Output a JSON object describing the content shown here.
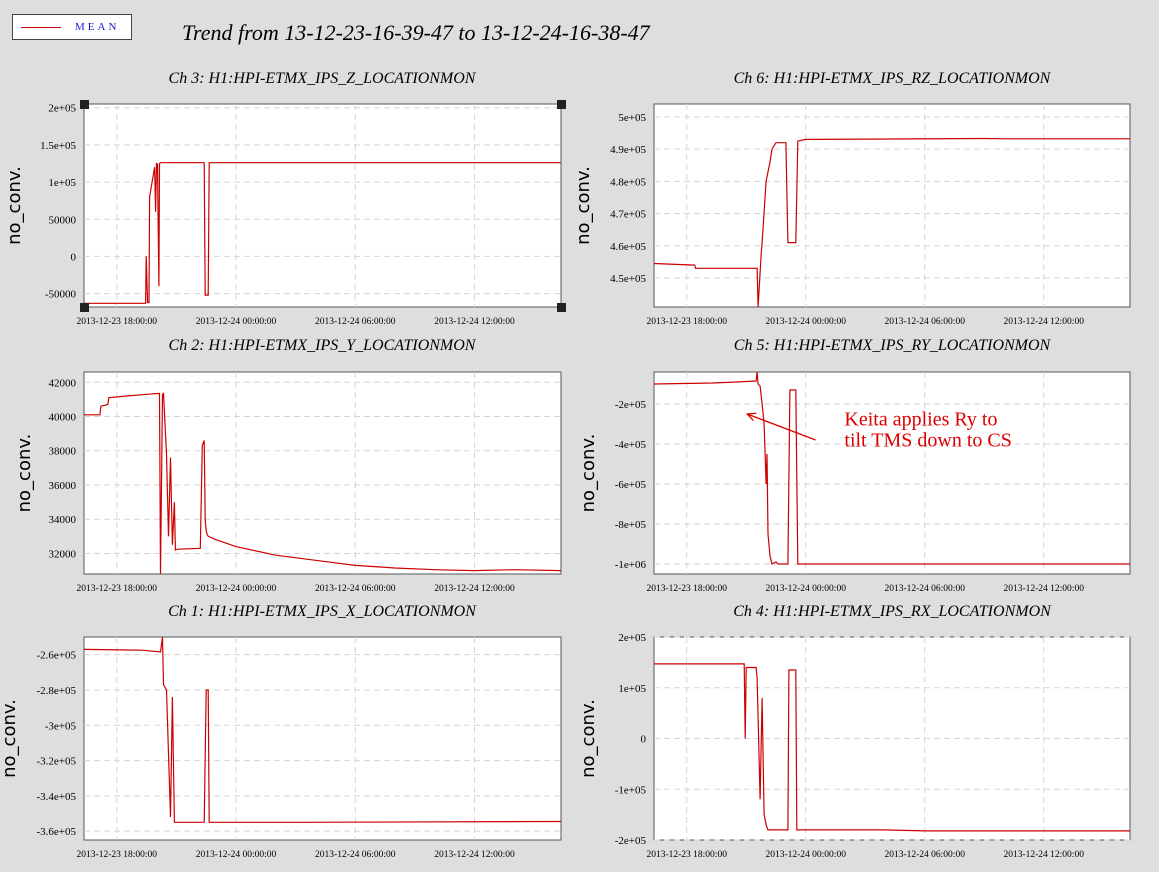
{
  "legend": {
    "label": "MEAN",
    "color": "#cc0000"
  },
  "title": "Trend from 13-12-23-16-39-47 to 13-12-24-16-38-47",
  "colors": {
    "trace": "#cc0000",
    "grid": "#d6d6d6",
    "page": "#dedede"
  },
  "chart_data": [
    {
      "id": "ch3",
      "type": "line",
      "title": "Ch 3: H1:HPI-ETMX_IPS_Z_LOCATIONMON",
      "ylabel": "no_conv.",
      "xlim": [
        -1.65,
        22.35
      ],
      "ylim": [
        -68000,
        205000
      ],
      "xticks": [
        0,
        6,
        12,
        18
      ],
      "xtick_labels": [
        "2013-12-23 18:00:00",
        "2013-12-24 00:00:00",
        "2013-12-24 06:00:00",
        "2013-12-24 12:00:00"
      ],
      "yticks": [
        -50000,
        0,
        50000,
        100000,
        150000,
        200000
      ],
      "ytick_labels": [
        "-50000",
        "0",
        "50000",
        "1e+05",
        "1.5e+05",
        "2e+05"
      ],
      "selected": true,
      "series": [
        {
          "x": [
            -1.65,
            1.45,
            1.48,
            1.55,
            1.62,
            1.65,
            1.9,
            1.95,
            2.0,
            2.05,
            2.12,
            2.15,
            2.2,
            2.25,
            4.4,
            4.45,
            4.6,
            4.65,
            22.35
          ],
          "y": [
            -63000,
            -63000,
            0,
            -62000,
            -62000,
            80000,
            120000,
            60000,
            125000,
            124000,
            -40000,
            125000,
            126000,
            126000,
            126000,
            -52000,
            -52000,
            126000,
            126000
          ]
        }
      ]
    },
    {
      "id": "ch6",
      "type": "line",
      "title": "Ch 6: H1:HPI-ETMX_IPS_RZ_LOCATIONMON",
      "ylabel": "no_conv.",
      "xlim": [
        -1.65,
        22.35
      ],
      "ylim": [
        441000,
        504000
      ],
      "xticks": [
        0,
        6,
        12,
        18
      ],
      "xtick_labels": [
        "2013-12-23 18:00:00",
        "2013-12-24 00:00:00",
        "2013-12-24 06:00:00",
        "2013-12-24 12:00:00"
      ],
      "yticks": [
        450000,
        460000,
        470000,
        480000,
        490000,
        500000
      ],
      "ytick_labels": [
        "4.5e+05",
        "4.6e+05",
        "4.7e+05",
        "4.8e+05",
        "4.9e+05",
        "5e+05"
      ],
      "series": [
        {
          "x": [
            -1.65,
            0.4,
            0.45,
            3.55,
            3.6,
            3.75,
            3.8,
            4.0,
            4.2,
            4.3,
            4.5,
            5.0,
            5.1,
            5.5,
            5.6,
            6.0,
            6.4,
            9.0,
            15.0,
            16.0,
            22.35
          ],
          "y": [
            454500,
            454000,
            453000,
            453000,
            441000,
            457000,
            461000,
            480000,
            486000,
            490000,
            492000,
            492000,
            461000,
            461000,
            492500,
            493000,
            493000,
            493100,
            493300,
            493200,
            493200
          ]
        }
      ]
    },
    {
      "id": "ch2",
      "type": "line",
      "title": "Ch 2: H1:HPI-ETMX_IPS_Y_LOCATIONMON",
      "ylabel": "no_conv.",
      "xlim": [
        -1.65,
        22.35
      ],
      "ylim": [
        30800,
        42600
      ],
      "xticks": [
        0,
        6,
        12,
        18
      ],
      "xtick_labels": [
        "2013-12-23 18:00:00",
        "2013-12-24 00:00:00",
        "2013-12-24 06:00:00",
        "2013-12-24 12:00:00"
      ],
      "yticks": [
        32000,
        34000,
        36000,
        38000,
        40000,
        42000
      ],
      "ytick_labels": [
        "32000",
        "34000",
        "36000",
        "38000",
        "40000",
        "42000"
      ],
      "series": [
        {
          "x": [
            -1.65,
            -0.85,
            -0.8,
            -0.45,
            -0.4,
            0.5,
            1.5,
            2.15,
            2.2,
            2.3,
            2.35,
            2.5,
            2.6,
            2.7,
            2.8,
            2.9,
            2.95,
            3.05,
            3.1,
            4.2,
            4.3,
            4.4,
            4.45,
            4.5,
            4.55,
            4.6,
            5.0,
            6.0,
            8.0,
            10.0,
            12.0,
            14.0,
            16.0,
            18.0,
            20.0,
            22.35
          ],
          "y": [
            40100,
            40100,
            40600,
            40700,
            41100,
            41200,
            41300,
            41350,
            30800,
            41300,
            41350,
            37800,
            33000,
            37600,
            32500,
            35000,
            32200,
            32250,
            32250,
            32300,
            38300,
            38600,
            34000,
            33300,
            33100,
            33000,
            32800,
            32400,
            31900,
            31600,
            31300,
            31150,
            31050,
            31000,
            31050,
            31000
          ]
        }
      ]
    },
    {
      "id": "ch5",
      "type": "line",
      "title": "Ch 5: H1:HPI-ETMX_IPS_RY_LOCATIONMON",
      "ylabel": "no_conv.",
      "xlim": [
        -1.65,
        22.35
      ],
      "ylim": [
        -1050000,
        -40000
      ],
      "xticks": [
        0,
        6,
        12,
        18
      ],
      "xtick_labels": [
        "2013-12-23 18:00:00",
        "2013-12-24 00:00:00",
        "2013-12-24 06:00:00",
        "2013-12-24 12:00:00"
      ],
      "yticks": [
        -1000000,
        -800000,
        -600000,
        -400000,
        -200000
      ],
      "ytick_labels": [
        "-1e+06",
        "-8e+05",
        "-6e+05",
        "-4e+05",
        "-2e+05"
      ],
      "annotation": {
        "lines": [
          "Keita applies Ry to",
          "tilt TMS down to CS"
        ],
        "arrow_from": [
          6.5,
          -380000
        ],
        "arrow_to": [
          3.05,
          -250000
        ],
        "text_at": [
          7.95,
          -307000
        ]
      },
      "series": [
        {
          "x": [
            -1.65,
            1.3,
            2.5,
            3.5,
            3.55,
            3.6,
            3.7,
            3.8,
            3.9,
            4.0,
            4.05,
            4.1,
            4.2,
            4.3,
            4.5,
            4.6,
            5.1,
            5.2,
            5.5,
            5.6,
            22.35
          ],
          "y": [
            -100000,
            -95000,
            -90000,
            -85000,
            -40000,
            -100000,
            -110000,
            -200000,
            -300000,
            -600000,
            -450000,
            -850000,
            -960000,
            -1000000,
            -990000,
            -1000000,
            -1000000,
            -130000,
            -130000,
            -1000000,
            -1000000
          ]
        }
      ]
    },
    {
      "id": "ch1",
      "type": "line",
      "title": "Ch 1: H1:HPI-ETMX_IPS_X_LOCATIONMON",
      "ylabel": "no_conv.",
      "xlim": [
        -1.65,
        22.35
      ],
      "ylim": [
        -365000,
        -250000
      ],
      "xticks": [
        0,
        6,
        12,
        18
      ],
      "xtick_labels": [
        "2013-12-23 18:00:00",
        "2013-12-24 00:00:00",
        "2013-12-24 06:00:00",
        "2013-12-24 12:00:00"
      ],
      "yticks": [
        -360000,
        -340000,
        -320000,
        -300000,
        -280000,
        -260000
      ],
      "ytick_labels": [
        "-3.6e+05",
        "-3.4e+05",
        "-3.2e+05",
        "-3e+05",
        "-2.8e+05",
        "-2.6e+05"
      ],
      "series": [
        {
          "x": [
            -1.65,
            1.3,
            2.2,
            2.3,
            2.35,
            2.5,
            2.7,
            2.8,
            2.9,
            3.1,
            4.4,
            4.5,
            4.6,
            4.65,
            9.0,
            22.35
          ],
          "y": [
            -257000,
            -257500,
            -258500,
            -250000,
            -277000,
            -280000,
            -352000,
            -284000,
            -355000,
            -355000,
            -355000,
            -280000,
            -280000,
            -355000,
            -355000,
            -354500
          ]
        }
      ]
    },
    {
      "id": "ch4",
      "type": "line",
      "title": "Ch 4: H1:HPI-ETMX_IPS_RX_LOCATIONMON",
      "ylabel": "no_conv.",
      "xlim": [
        -1.65,
        22.35
      ],
      "ylim": [
        -200000,
        200000
      ],
      "xticks": [
        0,
        6,
        12,
        18
      ],
      "xtick_labels": [
        "2013-12-23 18:00:00",
        "2013-12-24 00:00:00",
        "2013-12-24 06:00:00",
        "2013-12-24 12:00:00"
      ],
      "yticks": [
        -200000,
        -100000,
        0,
        100000,
        200000
      ],
      "ytick_labels": [
        "-2e+05",
        "-1e+05",
        "0",
        "1e+05",
        "2e+05"
      ],
      "series": [
        {
          "x": [
            -1.65,
            2.0,
            2.9,
            2.95,
            3.0,
            3.05,
            3.1,
            3.5,
            3.55,
            3.7,
            3.8,
            3.9,
            4.0,
            4.1,
            4.2,
            5.1,
            5.15,
            5.5,
            5.55,
            10.0,
            12.0,
            22.35
          ],
          "y": [
            147000,
            147000,
            147000,
            0,
            140000,
            140000,
            140000,
            140000,
            120000,
            -120000,
            80000,
            -150000,
            -170000,
            -180000,
            -180000,
            -180000,
            135000,
            135000,
            -180000,
            -180000,
            -182000,
            -182000
          ]
        }
      ]
    }
  ]
}
